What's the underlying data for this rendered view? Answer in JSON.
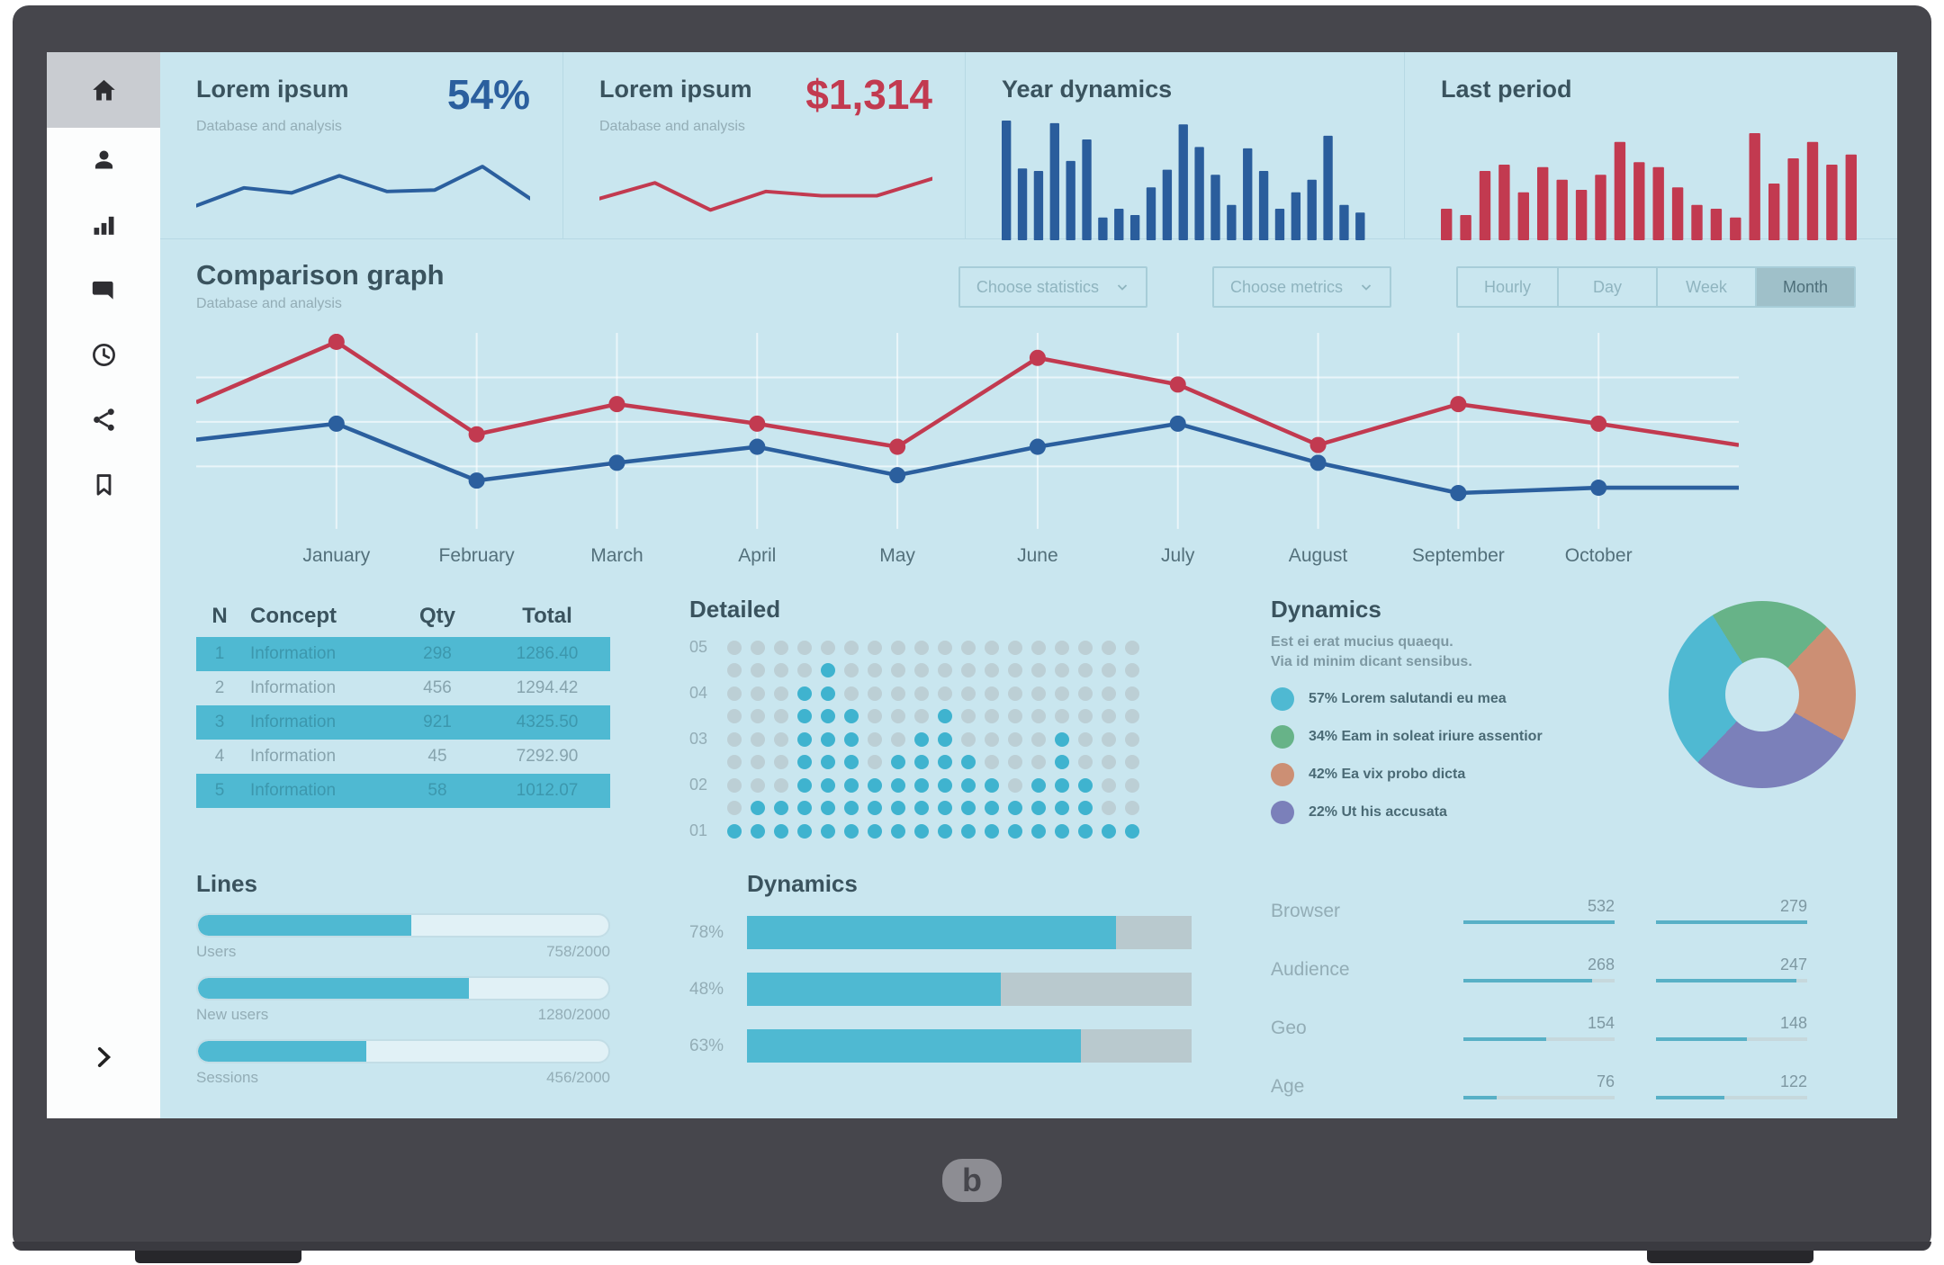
{
  "colors": {
    "screen_bg": "#c9e6ef",
    "accent_blue": "#2b5f9e",
    "accent_red": "#c23a50",
    "teal": "#4fb9d2",
    "donut_green": "#67b388",
    "donut_salmon": "#cc8f74",
    "donut_purple": "#7b80ba",
    "heading_text": "#3a535e",
    "muted_text": "#93adb6",
    "bezel": "#46464c"
  },
  "sidebar": {
    "items": [
      {
        "name": "home",
        "active": true
      },
      {
        "name": "profile",
        "active": false
      },
      {
        "name": "statistics",
        "active": false
      },
      {
        "name": "messages",
        "active": false
      },
      {
        "name": "history",
        "active": false
      },
      {
        "name": "share",
        "active": false
      },
      {
        "name": "bookmarks",
        "active": false
      }
    ]
  },
  "kpi_cards": [
    {
      "title": "Lorem ipsum",
      "subtitle": "Database and analysis",
      "value": "54%"
    },
    {
      "title": "Lorem ipsum",
      "subtitle": "Database and analysis",
      "value": "$1,314"
    },
    {
      "title": "Year dynamics"
    },
    {
      "title": "Last period"
    }
  ],
  "comparison": {
    "title": "Comparison graph",
    "subtitle": "Database and analysis",
    "dropdown1": "Choose statistics",
    "dropdown2": "Choose metrics",
    "range_options": [
      "Hourly",
      "Day",
      "Week",
      "Month"
    ],
    "selected_range": "Month"
  },
  "table": {
    "headers": [
      "N",
      "Concept",
      "Qty",
      "Total"
    ],
    "rows": [
      {
        "n": "1",
        "concept": "Information",
        "qty": "298",
        "total": "1286.40",
        "highlight": true
      },
      {
        "n": "2",
        "concept": "Information",
        "qty": "456",
        "total": "1294.42",
        "highlight": false
      },
      {
        "n": "3",
        "concept": "Information",
        "qty": "921",
        "total": "4325.50",
        "highlight": true
      },
      {
        "n": "4",
        "concept": "Information",
        "qty": "45",
        "total": "7292.90",
        "highlight": false
      },
      {
        "n": "5",
        "concept": "Information",
        "qty": "58",
        "total": "1012.07",
        "highlight": true
      }
    ]
  },
  "detailed": {
    "title": "Detailed",
    "row_labels": [
      "05",
      "04",
      "03",
      "02",
      "01"
    ],
    "grid": [
      "000000000000000000",
      "000010000000000000",
      "000110000000000000",
      "000111000100000000",
      "000111001100001000",
      "000111011110001000",
      "000111111111011100",
      "011111111111111100",
      "111111111111111111"
    ]
  },
  "donut": {
    "title": "Dynamics",
    "subtitle_line1": "Est ei erat mucius quaequ.",
    "subtitle_line2": "Via id minim dicant sensibus.",
    "legend": [
      {
        "pct": "57%",
        "label": "Lorem salutandi eu mea",
        "color": "#4fb9d2"
      },
      {
        "pct": "34%",
        "label": "Eam in soleat iriure assentior",
        "color": "#67b388"
      },
      {
        "pct": "42%",
        "label": "Ea vix probo dicta",
        "color": "#cc8f74"
      },
      {
        "pct": "22%",
        "label": "Ut his accusata",
        "color": "#7b80ba"
      }
    ],
    "segments": [
      {
        "color": "#67b388",
        "sweep": 21
      },
      {
        "color": "#cc8f74",
        "sweep": 21
      },
      {
        "color": "#7b80ba",
        "sweep": 29
      },
      {
        "color": "#4fb9d2",
        "sweep": 29
      }
    ]
  },
  "lines": {
    "title": "Lines",
    "bars": [
      {
        "label": "Users",
        "value": "758/2000",
        "fill": 52
      },
      {
        "label": "New users",
        "value": "1280/2000",
        "fill": 66
      },
      {
        "label": "Sessions",
        "value": "456/2000",
        "fill": 41
      }
    ]
  },
  "dynamics_bars": {
    "title": "Dynamics",
    "bars": [
      {
        "label": "78%",
        "fill": 83
      },
      {
        "label": "48%",
        "fill": 57
      },
      {
        "label": "63%",
        "fill": 75
      }
    ]
  },
  "stats": {
    "rows": [
      {
        "label": "Browser",
        "col1": {
          "value": "532",
          "fill": 100
        },
        "col2": {
          "value": "279",
          "fill": 100
        }
      },
      {
        "label": "Audience",
        "col1": {
          "value": "268",
          "fill": 85
        },
        "col2": {
          "value": "247",
          "fill": 93
        }
      },
      {
        "label": "Geo",
        "col1": {
          "value": "154",
          "fill": 55
        },
        "col2": {
          "value": "148",
          "fill": 60
        }
      },
      {
        "label": "Age",
        "col1": {
          "value": "76",
          "fill": 22
        },
        "col2": {
          "value": "122",
          "fill": 45
        }
      }
    ]
  },
  "chart_data": [
    {
      "id": "kpi-spark-blue",
      "type": "line",
      "title": "Lorem ipsum 54%",
      "color": "#2b5f9e",
      "ylim": [
        0,
        100
      ],
      "values": [
        20,
        45,
        38,
        62,
        40,
        42,
        75,
        30
      ]
    },
    {
      "id": "kpi-spark-red",
      "type": "line",
      "title": "Lorem ipsum $1,314",
      "color": "#c23a50",
      "ylim": [
        0,
        100
      ],
      "values": [
        30,
        52,
        14,
        40,
        34,
        34,
        58
      ]
    },
    {
      "id": "year-dynamics",
      "type": "bar",
      "title": "Year dynamics",
      "color": "#2a5d9c",
      "ylim": [
        0,
        100
      ],
      "values": [
        95,
        57,
        55,
        93,
        63,
        80,
        18,
        25,
        20,
        42,
        56,
        92,
        74,
        52,
        28,
        73,
        55,
        25,
        38,
        48,
        83,
        28,
        22
      ]
    },
    {
      "id": "last-period",
      "type": "bar",
      "title": "Last period",
      "color": "#c23a50",
      "ylim": [
        0,
        100
      ],
      "values": [
        25,
        20,
        55,
        60,
        38,
        58,
        48,
        40,
        52,
        78,
        62,
        58,
        42,
        28,
        25,
        18,
        85,
        45,
        65,
        78,
        60,
        68
      ]
    },
    {
      "id": "comparison",
      "type": "line",
      "title": "Comparison graph",
      "categories": [
        "January",
        "February",
        "March",
        "April",
        "May",
        "June",
        "July",
        "August",
        "September",
        "October"
      ],
      "note": "first and last values of each series are unmarked edge points before January and after October",
      "ylim": [
        0,
        100
      ],
      "grid": true,
      "series": [
        {
          "name": "series-red",
          "color": "#c23a50",
          "values": [
            61,
            95,
            43,
            60,
            49,
            36,
            86,
            71,
            37,
            60,
            49,
            37
          ]
        },
        {
          "name": "series-blue",
          "color": "#2b5f9e",
          "values": [
            40,
            49,
            17,
            27,
            36,
            20,
            36,
            49,
            27,
            10,
            13,
            13
          ]
        }
      ]
    },
    {
      "id": "dynamics-donut",
      "type": "pie",
      "title": "Dynamics",
      "legend_position": "left",
      "slices": [
        {
          "label": "Lorem salutandi eu mea",
          "pct": 57,
          "color": "#4fb9d2"
        },
        {
          "label": "Eam in soleat iriure assentior",
          "pct": 34,
          "color": "#67b388"
        },
        {
          "label": "Ea vix probo dicta",
          "pct": 42,
          "color": "#cc8f74"
        },
        {
          "label": "Ut his accusata",
          "pct": 22,
          "color": "#7b80ba"
        }
      ]
    },
    {
      "id": "detailed-dots",
      "type": "heatmap",
      "title": "Detailed",
      "row_labels": [
        "05",
        "",
        "04",
        "",
        "03",
        "",
        "02",
        "",
        "01"
      ],
      "note": "1 = teal dot, 0 = gray dot; grid listed top row first, see detailed.grid"
    }
  ]
}
